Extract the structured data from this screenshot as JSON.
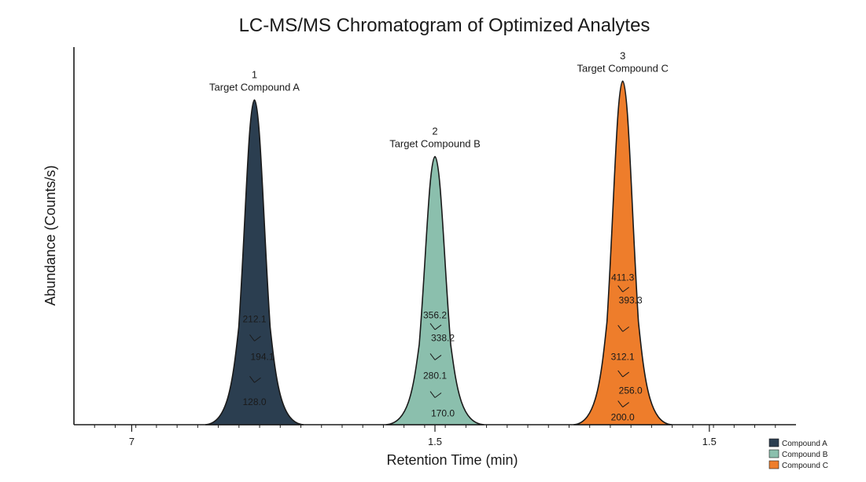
{
  "chart_data": {
    "type": "area",
    "title": "LC-MS/MS Chromatogram of Optimized Analytes",
    "xlabel": "Retention Time (min)",
    "ylabel": "Abundance (Counts/s)",
    "ylim": [
      0,
      1.0
    ],
    "grid": false,
    "legend_position": "bottom-right",
    "x_tick_labels": [
      {
        "label": "7",
        "pos": 0.08
      },
      {
        "label": "1.5",
        "pos": 0.5
      },
      {
        "label": "1.5",
        "pos": 0.88
      }
    ],
    "series": [
      {
        "name": "Compound A",
        "color": "#2b3e50",
        "peak_center": 0.25,
        "peak_height": 0.86,
        "peak_number": "1",
        "peak_label": "Target Compound A",
        "fragments": [
          {
            "label": "212.1",
            "level": 0.28
          },
          {
            "label": "194.1",
            "level": 0.18
          },
          {
            "label": "128.0",
            "level": 0.06
          }
        ]
      },
      {
        "name": "Compound B",
        "color": "#8bbfad",
        "peak_center": 0.5,
        "peak_height": 0.71,
        "peak_number": "2",
        "peak_label": "Target Compound B",
        "fragments": [
          {
            "label": "356.2",
            "level": 0.29
          },
          {
            "label": "338.2",
            "level": 0.23
          },
          {
            "label": "280.1",
            "level": 0.13
          },
          {
            "label": "170.0",
            "level": 0.03
          }
        ]
      },
      {
        "name": "Compound C",
        "color": "#ee7d2b",
        "peak_center": 0.76,
        "peak_height": 0.91,
        "peak_number": "3",
        "peak_label": "Target Compound C",
        "fragments": [
          {
            "label": "411.3",
            "level": 0.39
          },
          {
            "label": "393.3",
            "level": 0.33
          },
          {
            "label": "312.1",
            "level": 0.18
          },
          {
            "label": "256.0",
            "level": 0.09
          },
          {
            "label": "200.0",
            "level": 0.02
          }
        ]
      }
    ]
  }
}
